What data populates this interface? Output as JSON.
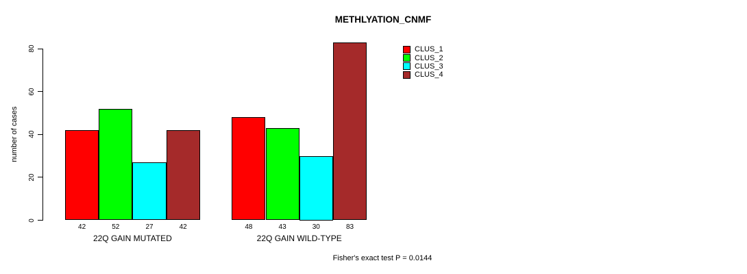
{
  "title": "METHLYATION_CNMF",
  "footer": "Fisher's exact test P = 0.0144",
  "chart_data": {
    "type": "bar",
    "title": "METHLYATION_CNMF",
    "xlabel": "",
    "ylabel": "number of cases",
    "ylim": [
      0,
      80
    ],
    "yticks": [
      0,
      20,
      40,
      60,
      80
    ],
    "grid": false,
    "legend_position": "top-right",
    "categories": [
      "22Q GAIN MUTATED",
      "22Q GAIN WILD-TYPE"
    ],
    "series": [
      {
        "name": "CLUS_1",
        "color": "#ff0000",
        "values": [
          42,
          48
        ]
      },
      {
        "name": "CLUS_2",
        "color": "#00ff00",
        "values": [
          52,
          43
        ]
      },
      {
        "name": "CLUS_3",
        "color": "#00ffff",
        "values": [
          27,
          30
        ]
      },
      {
        "name": "CLUS_4",
        "color": "#a52a2a",
        "values": [
          42,
          83
        ]
      }
    ],
    "bar_labels": [
      [
        42,
        52,
        27,
        42
      ],
      [
        48,
        43,
        30,
        83
      ]
    ],
    "annotation": "Fisher's exact test P = 0.0144"
  }
}
